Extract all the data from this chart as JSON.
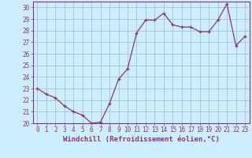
{
  "x": [
    0,
    1,
    2,
    3,
    4,
    5,
    6,
    7,
    8,
    9,
    10,
    11,
    12,
    13,
    14,
    15,
    16,
    17,
    18,
    19,
    20,
    21,
    22,
    23
  ],
  "y": [
    23.0,
    22.5,
    22.2,
    21.5,
    21.0,
    20.7,
    20.0,
    20.1,
    21.7,
    23.8,
    24.7,
    27.8,
    28.9,
    28.9,
    29.5,
    28.5,
    28.3,
    28.3,
    27.9,
    27.9,
    28.9,
    30.3,
    26.7,
    27.5
  ],
  "line_color": "#883388",
  "marker": "+",
  "background_color": "#cceeff",
  "grid_color": "#99bbcc",
  "xlabel": "Windchill (Refroidissement éolien,°C)",
  "xlim": [
    -0.5,
    23.5
  ],
  "ylim": [
    20,
    30.5
  ],
  "yticks": [
    20,
    21,
    22,
    23,
    24,
    25,
    26,
    27,
    28,
    29,
    30
  ],
  "xticks": [
    0,
    1,
    2,
    3,
    4,
    5,
    6,
    7,
    8,
    9,
    10,
    11,
    12,
    13,
    14,
    15,
    16,
    17,
    18,
    19,
    20,
    21,
    22,
    23
  ],
  "tick_fontsize": 5.5,
  "xlabel_fontsize": 6.5,
  "marker_size": 3,
  "line_width": 0.9
}
